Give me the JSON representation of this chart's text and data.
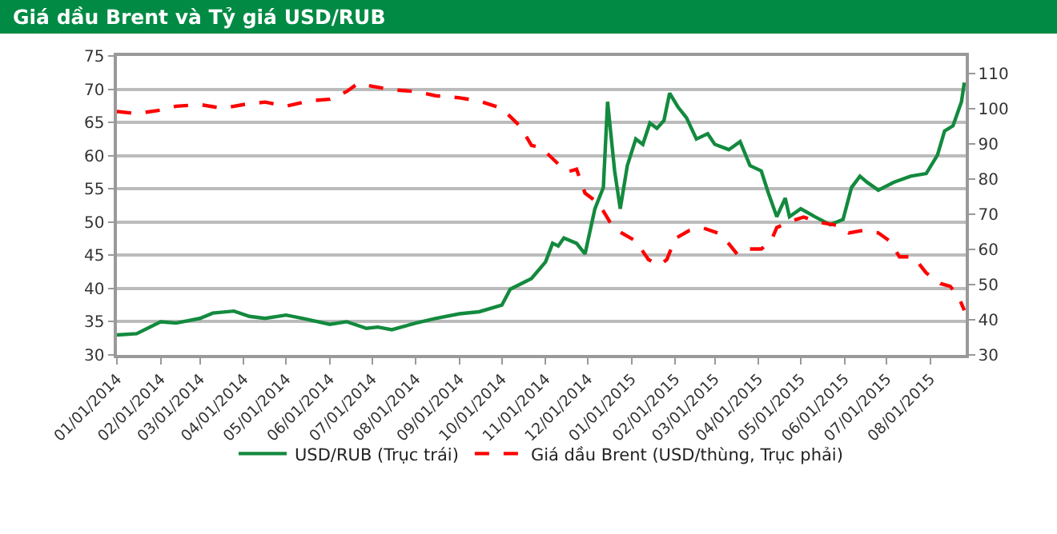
{
  "chart_data": {
    "type": "line",
    "title": "Giá dầu Brent và Tỷ giá USD/RUB",
    "xlim": [
      "2014-01-01",
      "2015-08-26"
    ],
    "xticks": [
      {
        "value": "2014-01-01",
        "label": "01/01/2014"
      },
      {
        "value": "2014-02-01",
        "label": "02/01/2014"
      },
      {
        "value": "2014-03-01",
        "label": "03/01/2014"
      },
      {
        "value": "2014-04-01",
        "label": "04/01/2014"
      },
      {
        "value": "2014-05-01",
        "label": "05/01/2014"
      },
      {
        "value": "2014-06-01",
        "label": "06/01/2014"
      },
      {
        "value": "2014-07-01",
        "label": "07/01/2014"
      },
      {
        "value": "2014-08-01",
        "label": "08/01/2014"
      },
      {
        "value": "2014-09-01",
        "label": "09/01/2014"
      },
      {
        "value": "2014-10-01",
        "label": "10/01/2014"
      },
      {
        "value": "2014-11-01",
        "label": "11/01/2014"
      },
      {
        "value": "2014-12-01",
        "label": "12/01/2014"
      },
      {
        "value": "2015-01-01",
        "label": "01/01/2015"
      },
      {
        "value": "2015-02-01",
        "label": "02/01/2015"
      },
      {
        "value": "2015-03-01",
        "label": "03/01/2015"
      },
      {
        "value": "2015-04-01",
        "label": "04/01/2015"
      },
      {
        "value": "2015-05-01",
        "label": "05/01/2015"
      },
      {
        "value": "2015-06-01",
        "label": "06/01/2015"
      },
      {
        "value": "2015-07-01",
        "label": "07/01/2015"
      },
      {
        "value": "2015-08-01",
        "label": "08/01/2015"
      }
    ],
    "ylim": [
      30,
      75
    ],
    "yticks": [
      30,
      35,
      40,
      45,
      50,
      55,
      60,
      65,
      70,
      75
    ],
    "y2lim": [
      30,
      115
    ],
    "y2ticks": [
      30,
      40,
      50,
      60,
      70,
      80,
      90,
      100,
      110
    ],
    "grid": "y",
    "legend": "bottom",
    "series": [
      {
        "name": "USD/RUB (Trục trái)",
        "color": "#138a3e",
        "line_style": "solid",
        "x": [
          "2014-01-01",
          "2014-01-15",
          "2014-02-01",
          "2014-02-12",
          "2014-03-01",
          "2014-03-10",
          "2014-03-25",
          "2014-04-05",
          "2014-04-16",
          "2014-05-01",
          "2014-05-13",
          "2014-06-01",
          "2014-06-13",
          "2014-06-27",
          "2014-07-05",
          "2014-07-15",
          "2014-08-01",
          "2014-08-15",
          "2014-09-01",
          "2014-09-15",
          "2014-10-01",
          "2014-10-07",
          "2014-10-22",
          "2014-11-01",
          "2014-11-06",
          "2014-11-10",
          "2014-11-14",
          "2014-11-23",
          "2014-11-29",
          "2014-12-06",
          "2014-12-12",
          "2014-12-15",
          "2014-12-20",
          "2014-12-24",
          "2014-12-29",
          "2015-01-04",
          "2015-01-09",
          "2015-01-14",
          "2015-01-19",
          "2015-01-24",
          "2015-01-28",
          "2015-02-03",
          "2015-02-09",
          "2015-02-16",
          "2015-02-24",
          "2015-03-01",
          "2015-03-11",
          "2015-03-19",
          "2015-03-26",
          "2015-04-03",
          "2015-04-08",
          "2015-04-14",
          "2015-04-20",
          "2015-04-23",
          "2015-05-01",
          "2015-05-11",
          "2015-05-22",
          "2015-05-31",
          "2015-06-06",
          "2015-06-12",
          "2015-06-17",
          "2015-06-25",
          "2015-07-06",
          "2015-07-18",
          "2015-07-29",
          "2015-08-06",
          "2015-08-11",
          "2015-08-17",
          "2015-08-23",
          "2015-08-25"
        ],
        "values": [
          33.0,
          33.2,
          35.0,
          34.8,
          35.5,
          36.3,
          36.6,
          35.8,
          35.5,
          36.0,
          35.5,
          34.6,
          35.0,
          34.0,
          34.2,
          33.8,
          34.8,
          35.5,
          36.2,
          36.5,
          37.5,
          39.9,
          41.5,
          44.0,
          46.8,
          46.4,
          47.6,
          46.8,
          45.2,
          52.0,
          55.2,
          68.1,
          57.7,
          52.0,
          58.5,
          62.5,
          61.7,
          64.9,
          64.1,
          65.3,
          69.4,
          67.3,
          65.7,
          62.5,
          63.3,
          61.7,
          60.9,
          62.1,
          58.5,
          57.7,
          54.4,
          50.8,
          53.6,
          50.8,
          52.0,
          50.8,
          49.6,
          50.4,
          55.2,
          56.9,
          56.0,
          54.8,
          56.0,
          56.9,
          57.3,
          60.1,
          63.7,
          64.5,
          68.1,
          71.0
        ]
      },
      {
        "name": "Giá dầu Brent (USD/thùng, Trục phải)",
        "color": "#ff0000",
        "line_style": "dashed",
        "axis": "y2",
        "x": [
          "2014-01-01",
          "2014-01-15",
          "2014-02-01",
          "2014-02-12",
          "2014-03-01",
          "2014-03-17",
          "2014-04-01",
          "2014-04-16",
          "2014-05-01",
          "2014-05-17",
          "2014-06-01",
          "2014-06-13",
          "2014-06-21",
          "2014-07-01",
          "2014-07-15",
          "2014-08-01",
          "2014-08-15",
          "2014-09-01",
          "2014-09-15",
          "2014-10-01",
          "2014-10-14",
          "2014-10-22",
          "2014-10-29",
          "2014-11-10",
          "2014-11-17",
          "2014-11-23",
          "2014-11-29",
          "2014-12-04",
          "2014-12-10",
          "2014-12-18",
          "2014-12-25",
          "2015-01-04",
          "2015-01-13",
          "2015-01-21",
          "2015-01-26",
          "2015-02-01",
          "2015-02-11",
          "2015-02-20",
          "2015-03-03",
          "2015-03-11",
          "2015-03-17",
          "2015-03-24",
          "2015-04-03",
          "2015-04-10",
          "2015-04-14",
          "2015-04-22",
          "2015-05-03",
          "2015-05-14",
          "2015-05-26",
          "2015-06-04",
          "2015-06-14",
          "2015-06-25",
          "2015-07-03",
          "2015-07-10",
          "2015-07-20",
          "2015-07-29",
          "2015-08-08",
          "2015-08-15",
          "2015-08-21",
          "2015-08-25"
        ],
        "values": [
          99.2,
          98.6,
          99.6,
          100.7,
          101.2,
          100.1,
          101.2,
          101.9,
          100.7,
          102.2,
          102.7,
          104.9,
          107.2,
          106.4,
          105.4,
          104.9,
          103.7,
          103.1,
          102.2,
          100.1,
          95.0,
          89.6,
          88.9,
          84.3,
          82.1,
          82.8,
          76.0,
          74.5,
          72.2,
          66.9,
          64.7,
          62.4,
          57.1,
          55.6,
          57.1,
          63.1,
          65.4,
          66.2,
          64.7,
          61.6,
          58.6,
          60.1,
          60.1,
          62.4,
          66.2,
          67.7,
          69.2,
          67.7,
          66.9,
          64.7,
          65.4,
          64.7,
          62.4,
          57.9,
          57.9,
          53.3,
          50.3,
          49.5,
          46.5,
          42.7
        ]
      }
    ]
  }
}
